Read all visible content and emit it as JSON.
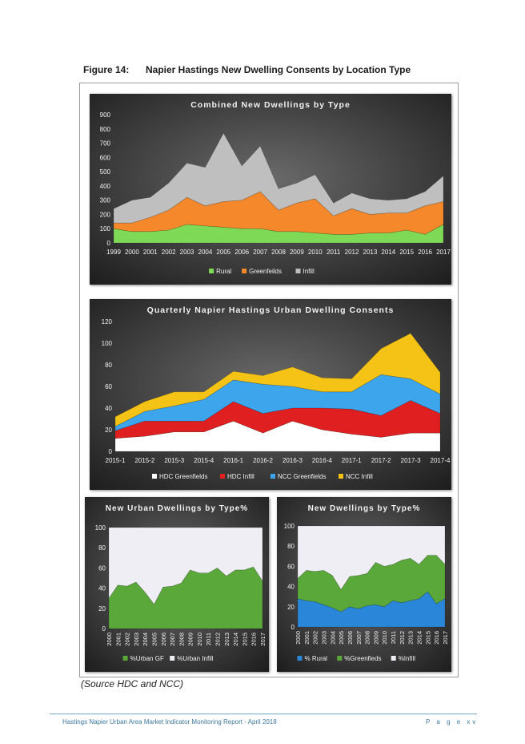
{
  "figure": {
    "number": "Figure 14:",
    "title": "Napier Hastings New Dwelling Consents by Location Type"
  },
  "source": "(Source HDC and NCC)",
  "footer": {
    "left": "Hastings Napier Urban Area Market Indicator Monitoring Report - April 2018",
    "right": "P a g e   xv"
  },
  "chart_data": [
    {
      "type": "area",
      "stacked": true,
      "title": "Combined New Dwellings by Type",
      "categories": [
        "1999",
        "2000",
        "2001",
        "2002",
        "2003",
        "2004",
        "2005",
        "2006",
        "2007",
        "2008",
        "2009",
        "2010",
        "2011",
        "2012",
        "2013",
        "2014",
        "2015",
        "2016",
        "2017"
      ],
      "ylim": [
        0,
        900
      ],
      "yticks": [
        0,
        100,
        200,
        300,
        400,
        500,
        600,
        700,
        800,
        900
      ],
      "series": [
        {
          "name": "Rural",
          "color": "#7ed957",
          "values": [
            100,
            80,
            80,
            90,
            130,
            120,
            110,
            100,
            100,
            80,
            80,
            70,
            60,
            60,
            70,
            70,
            90,
            60,
            130
          ]
        },
        {
          "name": "Greenfeilds",
          "color": "#f5882a",
          "values": [
            40,
            60,
            100,
            140,
            190,
            140,
            180,
            200,
            260,
            150,
            200,
            240,
            130,
            180,
            130,
            140,
            120,
            200,
            160
          ]
        },
        {
          "name": "Infill",
          "color": "#bfbfbf",
          "values": [
            100,
            160,
            140,
            190,
            240,
            270,
            480,
            240,
            320,
            150,
            140,
            170,
            90,
            110,
            110,
            90,
            100,
            100,
            180
          ]
        }
      ],
      "legend": [
        "Rural",
        "Greenfeilds",
        "Infill"
      ]
    },
    {
      "type": "area",
      "stacked": true,
      "title": "Quarterly Napier Hastings Urban Dwelling Consents",
      "categories": [
        "2015-1",
        "2015-2",
        "2015-3",
        "2015-4",
        "2016-1",
        "2016-2",
        "2016-3",
        "2016-4",
        "2017-1",
        "2017-2",
        "2017-3",
        "2017-4"
      ],
      "ylim": [
        0,
        120
      ],
      "yticks": [
        0,
        20,
        40,
        60,
        80,
        100,
        120
      ],
      "series": [
        {
          "name": "HDC Greenfields",
          "color": "#ffffff",
          "values": [
            12,
            14,
            18,
            18,
            28,
            17,
            28,
            20,
            16,
            13,
            17,
            17
          ]
        },
        {
          "name": "HDC Infill",
          "color": "#e02020",
          "values": [
            7,
            14,
            10,
            10,
            18,
            18,
            12,
            20,
            23,
            20,
            30,
            18
          ]
        },
        {
          "name": "NCC Greenfields",
          "color": "#3da5ec",
          "values": [
            4,
            9,
            14,
            20,
            20,
            27,
            20,
            15,
            16,
            38,
            20,
            18
          ]
        },
        {
          "name": "NCC Infill",
          "color": "#f5c316",
          "values": [
            9,
            9,
            13,
            7,
            8,
            8,
            18,
            13,
            12,
            24,
            42,
            20
          ]
        }
      ],
      "legend": [
        "HDC Greenfields",
        "HDC Infill",
        "NCC Greenfields",
        "NCC Infill"
      ]
    },
    {
      "type": "area",
      "stacked": true,
      "title": "New Urban Dwellings by Type%",
      "categories": [
        "2000",
        "2001",
        "2002",
        "2003",
        "2004",
        "2005",
        "2006",
        "2007",
        "2008",
        "2009",
        "2010",
        "2011",
        "2012",
        "2013",
        "2014",
        "2015",
        "2016",
        "2017"
      ],
      "ylim": [
        0,
        100
      ],
      "yticks": [
        0,
        20,
        40,
        60,
        80,
        100
      ],
      "series": [
        {
          "name": "%Urban GF",
          "color": "#5aa83a",
          "values": [
            30,
            43,
            42,
            46,
            36,
            24,
            41,
            42,
            45,
            58,
            55,
            55,
            60,
            52,
            58,
            58,
            61,
            47
          ]
        },
        {
          "name": "%Urban Infill",
          "color": "#eeeef4",
          "values": [
            70,
            57,
            58,
            54,
            64,
            76,
            59,
            58,
            55,
            42,
            45,
            45,
            40,
            48,
            42,
            42,
            39,
            53
          ]
        }
      ],
      "legend": [
        "%Urban GF",
        "%Urban Infill"
      ]
    },
    {
      "type": "area",
      "stacked": true,
      "title": "New Dwellings by Type%",
      "categories": [
        "2000",
        "2001",
        "2002",
        "2003",
        "2004",
        "2005",
        "2006",
        "2007",
        "2008",
        "2009",
        "2010",
        "2011",
        "2012",
        "2013",
        "2014",
        "2015",
        "2016",
        "2017"
      ],
      "ylim": [
        0,
        100
      ],
      "yticks": [
        0,
        20,
        40,
        60,
        80,
        100
      ],
      "series": [
        {
          "name": "% Rural",
          "color": "#2a86d8",
          "values": [
            28,
            26,
            25,
            22,
            19,
            15,
            20,
            18,
            21,
            22,
            20,
            26,
            24,
            26,
            28,
            35,
            23,
            28
          ]
        },
        {
          "name": "%Greenfieds",
          "color": "#5aa83a",
          "values": [
            20,
            30,
            30,
            34,
            32,
            22,
            30,
            33,
            32,
            42,
            40,
            36,
            42,
            42,
            34,
            36,
            48,
            34
          ]
        },
        {
          "name": "%Infill",
          "color": "#eeeef4",
          "values": [
            52,
            44,
            45,
            44,
            49,
            63,
            50,
            49,
            47,
            36,
            40,
            38,
            34,
            32,
            38,
            29,
            29,
            38
          ]
        }
      ],
      "legend": [
        "% Rural",
        "%Greenfieds",
        "%Infill"
      ]
    }
  ]
}
